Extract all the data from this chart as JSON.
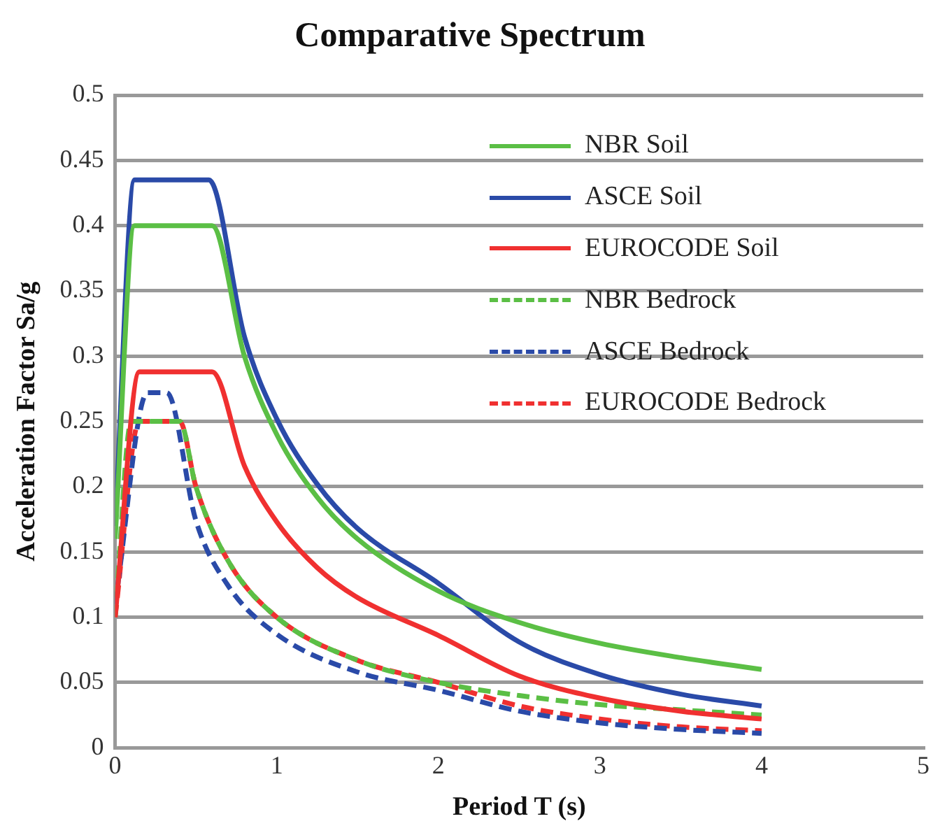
{
  "chart_data": {
    "type": "line",
    "title": "Comparative Spectrum",
    "xlabel": "Period T (s)",
    "ylabel": "Acceleration Factor Sa/g",
    "xlim": [
      0,
      5
    ],
    "xticks": [
      0,
      1,
      2,
      3,
      4,
      5
    ],
    "ylim": [
      0,
      0.5
    ],
    "yticks": [
      0,
      0.05,
      0.1,
      0.15,
      0.2,
      0.25,
      0.3,
      0.35,
      0.4,
      0.45,
      0.5
    ],
    "grid": "y",
    "legend": "top right",
    "marker": "none",
    "series": [
      {
        "name": "NBR Soil",
        "color": "#5bbf45",
        "line_style": "solid",
        "x": [
          0,
          0.12,
          0.6,
          0.8,
          1,
          1.25,
          1.5,
          2,
          2.5,
          3,
          3.5,
          4
        ],
        "values": [
          0.16,
          0.4,
          0.4,
          0.3,
          0.24,
          0.192,
          0.16,
          0.12,
          0.096,
          0.08,
          0.069,
          0.06
        ]
      },
      {
        "name": "ASCE Soil",
        "color": "#2a4aa8",
        "line_style": "solid",
        "x": [
          0,
          0.12,
          0.58,
          0.8,
          1,
          1.25,
          1.5,
          2,
          2.5,
          3,
          3.5,
          4
        ],
        "values": [
          0.17,
          0.435,
          0.435,
          0.315,
          0.252,
          0.202,
          0.168,
          0.126,
          0.081,
          0.056,
          0.041,
          0.032
        ]
      },
      {
        "name": "EUROCODE Soil",
        "color": "#f03030",
        "line_style": "solid",
        "x": [
          0,
          0.15,
          0.6,
          0.8,
          1,
          1.25,
          1.5,
          2,
          2.5,
          3,
          3.5,
          4
        ],
        "values": [
          0.1,
          0.288,
          0.288,
          0.216,
          0.173,
          0.138,
          0.115,
          0.086,
          0.055,
          0.038,
          0.028,
          0.022
        ]
      },
      {
        "name": "NBR Bedrock",
        "color": "#5bbf45",
        "line_style": "dashed",
        "x": [
          0,
          0.1,
          0.4,
          0.5,
          0.7,
          1,
          1.5,
          2,
          2.5,
          3,
          3.5,
          4
        ],
        "values": [
          0.1,
          0.25,
          0.25,
          0.2,
          0.143,
          0.1,
          0.067,
          0.05,
          0.04,
          0.033,
          0.029,
          0.025
        ]
      },
      {
        "name": "ASCE Bedrock",
        "color": "#2a4aa8",
        "line_style": "dashed",
        "x": [
          0,
          0.2,
          0.32,
          0.5,
          0.7,
          1,
          1.5,
          2,
          2.5,
          3,
          3.5,
          4
        ],
        "values": [
          0.11,
          0.272,
          0.272,
          0.174,
          0.124,
          0.087,
          0.058,
          0.044,
          0.028,
          0.019,
          0.014,
          0.011
        ]
      },
      {
        "name": "EUROCODE Bedrock",
        "color": "#f03030",
        "line_style": "dashed",
        "x": [
          0,
          0.15,
          0.4,
          0.5,
          0.7,
          1,
          1.5,
          2,
          2.5,
          3,
          3.5,
          4
        ],
        "values": [
          0.1,
          0.25,
          0.25,
          0.2,
          0.143,
          0.1,
          0.067,
          0.05,
          0.032,
          0.022,
          0.016,
          0.013
        ]
      }
    ]
  }
}
